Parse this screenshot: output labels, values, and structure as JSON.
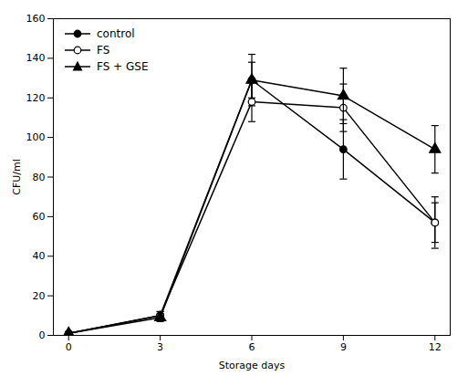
{
  "chart_data": {
    "type": "line",
    "xlabel": "Storage days",
    "ylabel": "CFU/ml",
    "x": [
      0,
      3,
      6,
      9,
      12
    ],
    "series": [
      {
        "name": "control",
        "color": "black",
        "marker": "circle",
        "values": [
          1,
          10,
          129,
          94,
          57
        ],
        "yerr": [
          0.5,
          2,
          13,
          15,
          10
        ]
      },
      {
        "name": "FS",
        "color": "black",
        "marker": "open_circle",
        "values": [
          1,
          10,
          118,
          115,
          57
        ],
        "yerr": [
          0.5,
          2,
          10,
          12,
          13
        ]
      },
      {
        "name": "FS + GSE",
        "color": "black",
        "marker": "triangle",
        "values": [
          1,
          9,
          129,
          121,
          94
        ],
        "yerr": [
          0.5,
          2,
          9,
          14,
          12
        ]
      }
    ],
    "xlim": [
      -0.5,
      12.5
    ],
    "xticks": [
      0,
      3,
      6,
      9,
      12
    ],
    "ylim": [
      0,
      160
    ],
    "yticks": [
      0,
      20,
      40,
      60,
      80,
      100,
      120,
      140,
      160
    ],
    "grid": false,
    "legend": "upper left"
  }
}
